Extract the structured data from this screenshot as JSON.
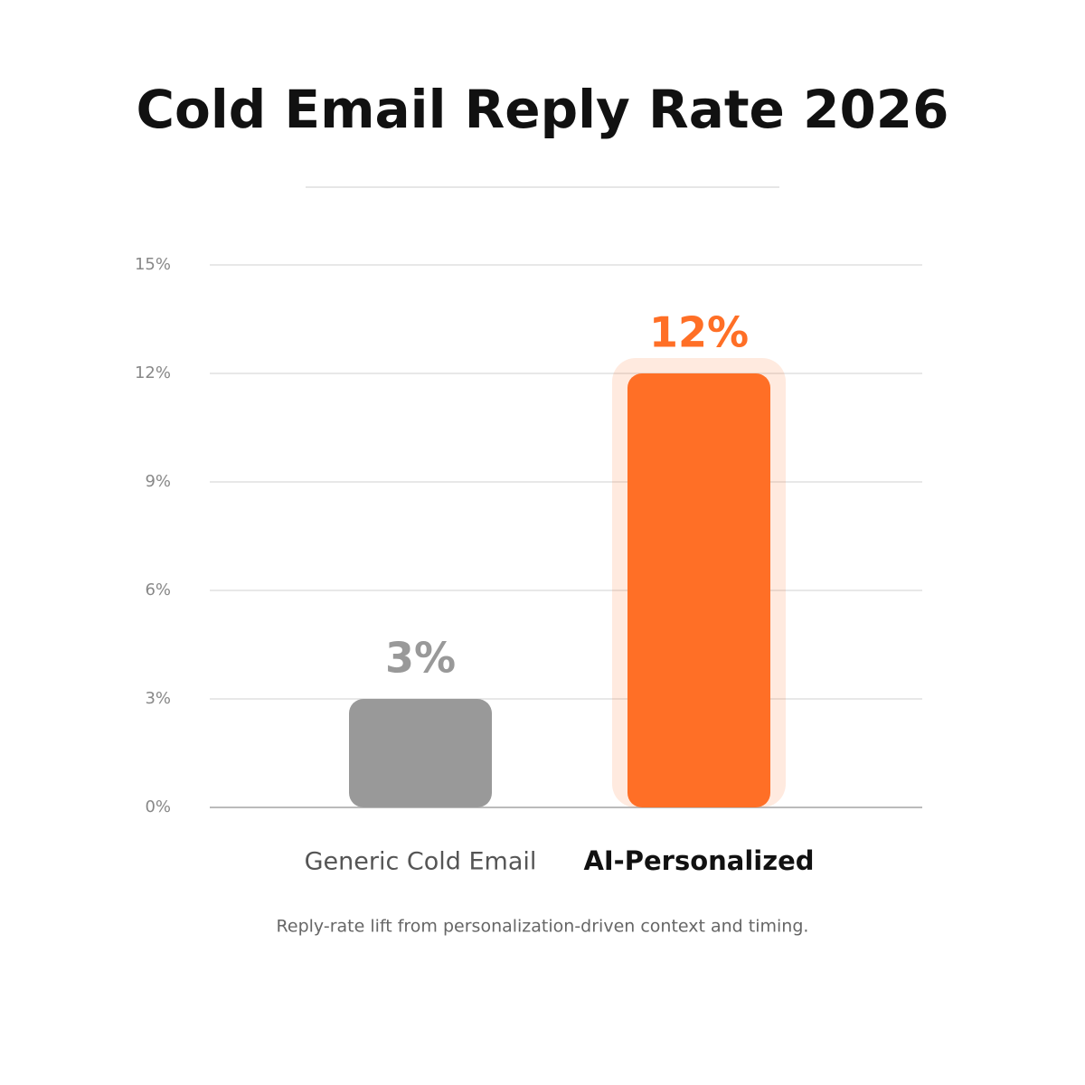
{
  "chart_data": {
    "type": "bar",
    "title": "Cold Email Reply Rate 2026",
    "caption": "Reply-rate lift from personalization-driven context and timing.",
    "categories": [
      "Generic Cold Email",
      "AI-Personalized"
    ],
    "values": [
      3,
      12
    ],
    "value_labels": [
      "3%",
      "12%"
    ],
    "colors": [
      "#999999",
      "#ff6f26"
    ],
    "highlight_index": 1,
    "ylim": [
      0,
      15
    ],
    "yticks": [
      {
        "value": 0,
        "label": "0%"
      },
      {
        "value": 3,
        "label": "3%"
      },
      {
        "value": 6,
        "label": "6%"
      },
      {
        "value": 9,
        "label": "9%"
      },
      {
        "value": 12,
        "label": "12%"
      },
      {
        "value": 15,
        "label": "15%"
      }
    ],
    "grid": true
  }
}
